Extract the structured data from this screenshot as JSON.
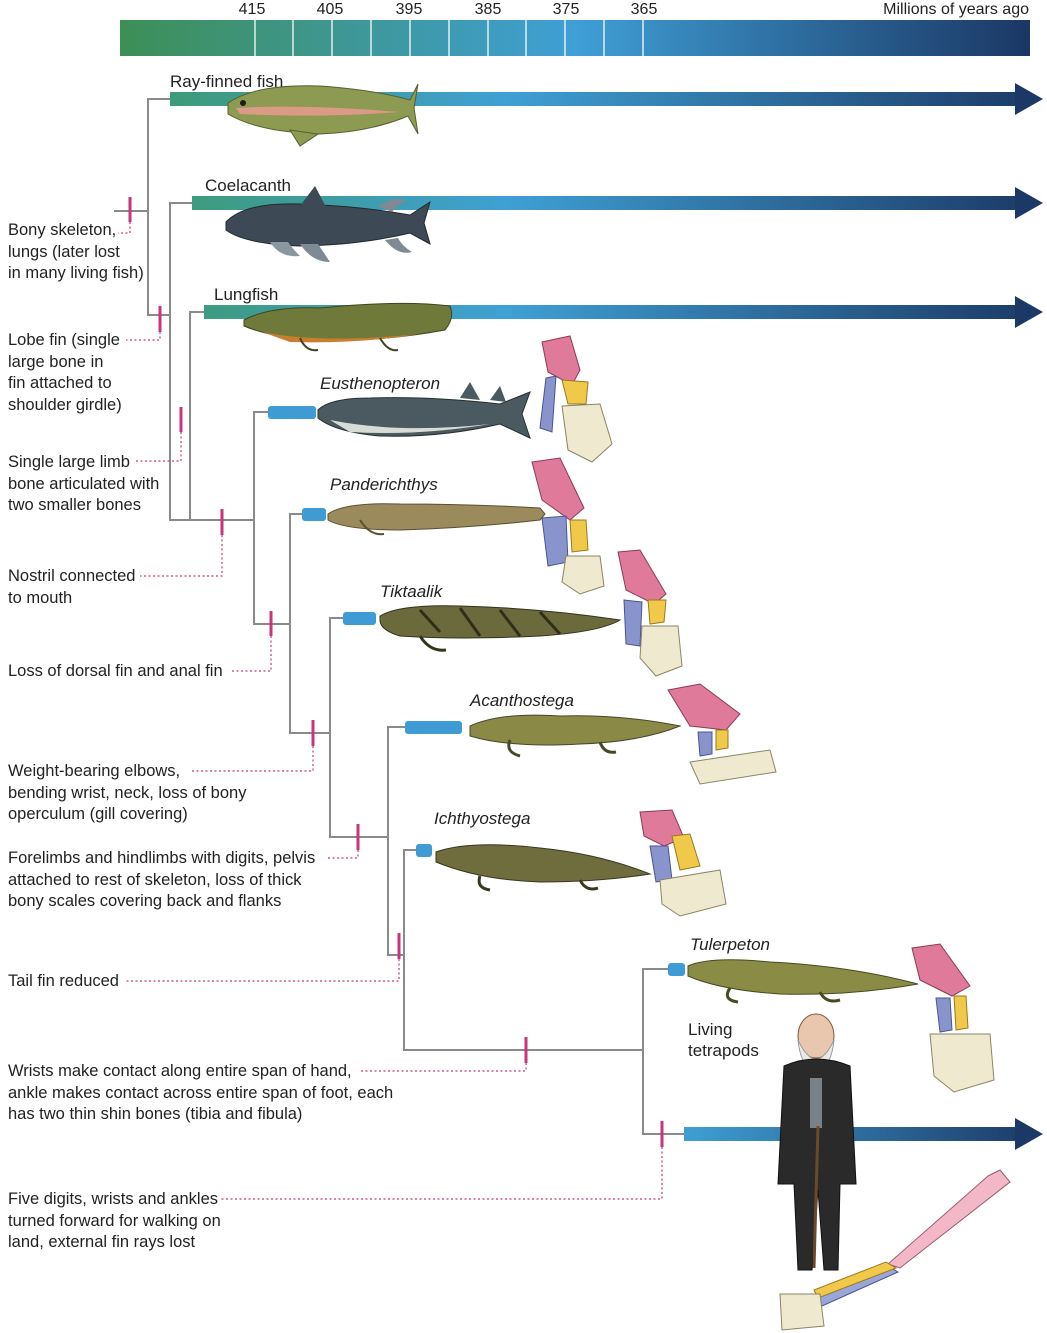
{
  "timeline": {
    "axis_title": "Millions of years ago",
    "ticks": [
      "415",
      "405",
      "395",
      "385",
      "375",
      "365"
    ]
  },
  "taxa": [
    {
      "name": "Ray-finned fish",
      "italic": false
    },
    {
      "name": "Coelacanth",
      "italic": false
    },
    {
      "name": "Lungfish",
      "italic": false
    },
    {
      "name": "Eusthenopteron",
      "italic": true
    },
    {
      "name": "Panderichthys",
      "italic": true
    },
    {
      "name": "Tiktaalik",
      "italic": true
    },
    {
      "name": "Acanthostega",
      "italic": true
    },
    {
      "name": "Ichthyostega",
      "italic": true
    },
    {
      "name": "Tulerpeton",
      "italic": true
    },
    {
      "name": "Living\ntetrapods",
      "italic": false
    }
  ],
  "characters": [
    "Bony skeleton,\nlungs (later lost\nin many living fish)",
    "Lobe fin (single\nlarge bone in\nfin attached to\nshoulder girdle)",
    "Single large limb\nbone articulated with\ntwo smaller bones",
    "Nostril connected\nto mouth",
    "Loss of dorsal fin and anal fin",
    "Weight-bearing elbows,\nbending wrist, neck, loss of bony\noperculum (gill covering)",
    "Forelimbs and hindlimbs with digits, pelvis\nattached to rest of skeleton, loss of thick\nbony scales covering back and flanks",
    "Tail fin reduced",
    "Wrists make contact along entire span of hand,\nankle makes contact across entire span of foot, each\nhas two thin shin bones (tibia and fibula)",
    "Five digits, wrists and ankles\nturned forward for walking on\nland, external fin rays lost"
  ],
  "colors": {
    "tree_line": "#8a8a8a",
    "character_mark": "#c8357a",
    "arrow_start": "#3d9a6a",
    "arrow_mid": "#3f9fd6",
    "arrow_end": "#1c3966",
    "bone_humerus": "#e07a9a",
    "bone_radius": "#f0c84a",
    "bone_ulna": "#8a94cc",
    "bone_digits": "#efe9cf"
  }
}
